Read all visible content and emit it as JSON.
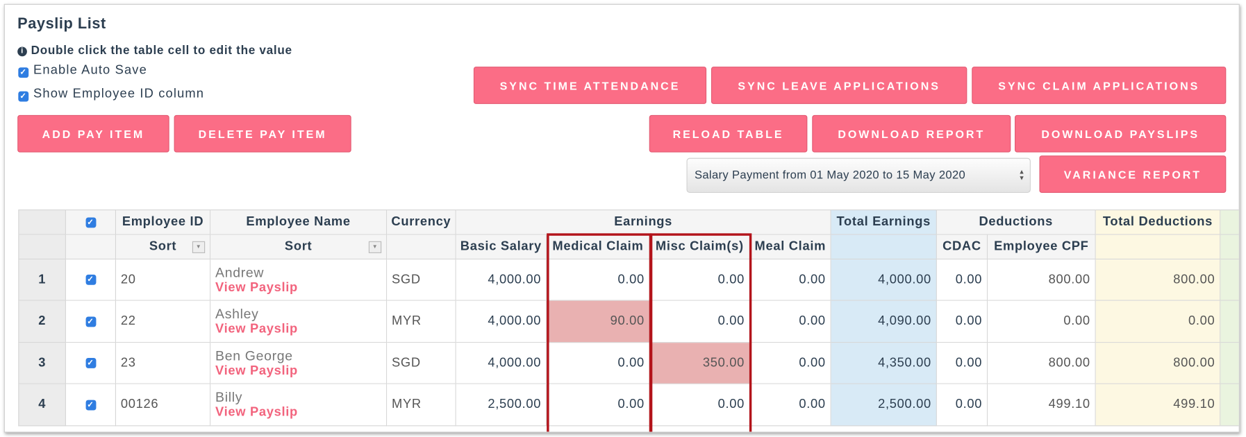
{
  "header": {
    "title": "Payslip List",
    "hint": "Double click the table cell to edit the value"
  },
  "options": [
    "Enable Auto Save",
    "Show Employee ID column"
  ],
  "buttons": {
    "sync_time": "SYNC TIME ATTENDANCE",
    "sync_leave": "SYNC LEAVE APPLICATIONS",
    "sync_claim": "SYNC CLAIM APPLICATIONS",
    "add_item": "ADD PAY ITEM",
    "delete_item": "DELETE PAY ITEM",
    "reload": "RELOAD TABLE",
    "download_report": "DOWNLOAD REPORT",
    "download_payslips": "DOWNLOAD PAYSLIPS",
    "variance": "VARIANCE REPORT"
  },
  "payroll_period": "Salary Payment from 01 May 2020 to 15 May 2020",
  "table": {
    "groups": {
      "employee_id": "Employee ID",
      "employee_name": "Employee Name",
      "currency": "Currency",
      "earnings": "Earnings",
      "total_earnings": "Total Earnings",
      "deductions": "Deductions",
      "total_deductions": "Total Deductions"
    },
    "sort_label": "Sort",
    "columns": [
      "Basic Salary",
      "Medical Claim",
      "Misc Claim(s)",
      "Meal Claim",
      "CDAC",
      "Employee CPF"
    ],
    "link_label": "View Payslip",
    "rows": [
      {
        "no": 1,
        "id": "20",
        "name": "Andrew",
        "currency": "SGD",
        "values": [
          "4,000.00",
          "0.00",
          "0.00",
          "0.00",
          "4,000.00",
          "0.00",
          "800.00",
          "800.00"
        ]
      },
      {
        "no": 2,
        "id": "22",
        "name": "Ashley",
        "currency": "MYR",
        "values": [
          "4,000.00",
          "90.00",
          "0.00",
          "0.00",
          "4,090.00",
          "0.00",
          "0.00",
          "0.00"
        ]
      },
      {
        "no": 3,
        "id": "23",
        "name": "Ben George",
        "currency": "SGD",
        "values": [
          "4,000.00",
          "0.00",
          "350.00",
          "0.00",
          "4,350.00",
          "0.00",
          "800.00",
          "800.00"
        ]
      },
      {
        "no": 4,
        "id": "00126",
        "name": "Billy",
        "currency": "MYR",
        "values": [
          "2,500.00",
          "0.00",
          "0.00",
          "0.00",
          "2,500.00",
          "0.00",
          "499.10",
          "499.10"
        ]
      }
    ]
  }
}
